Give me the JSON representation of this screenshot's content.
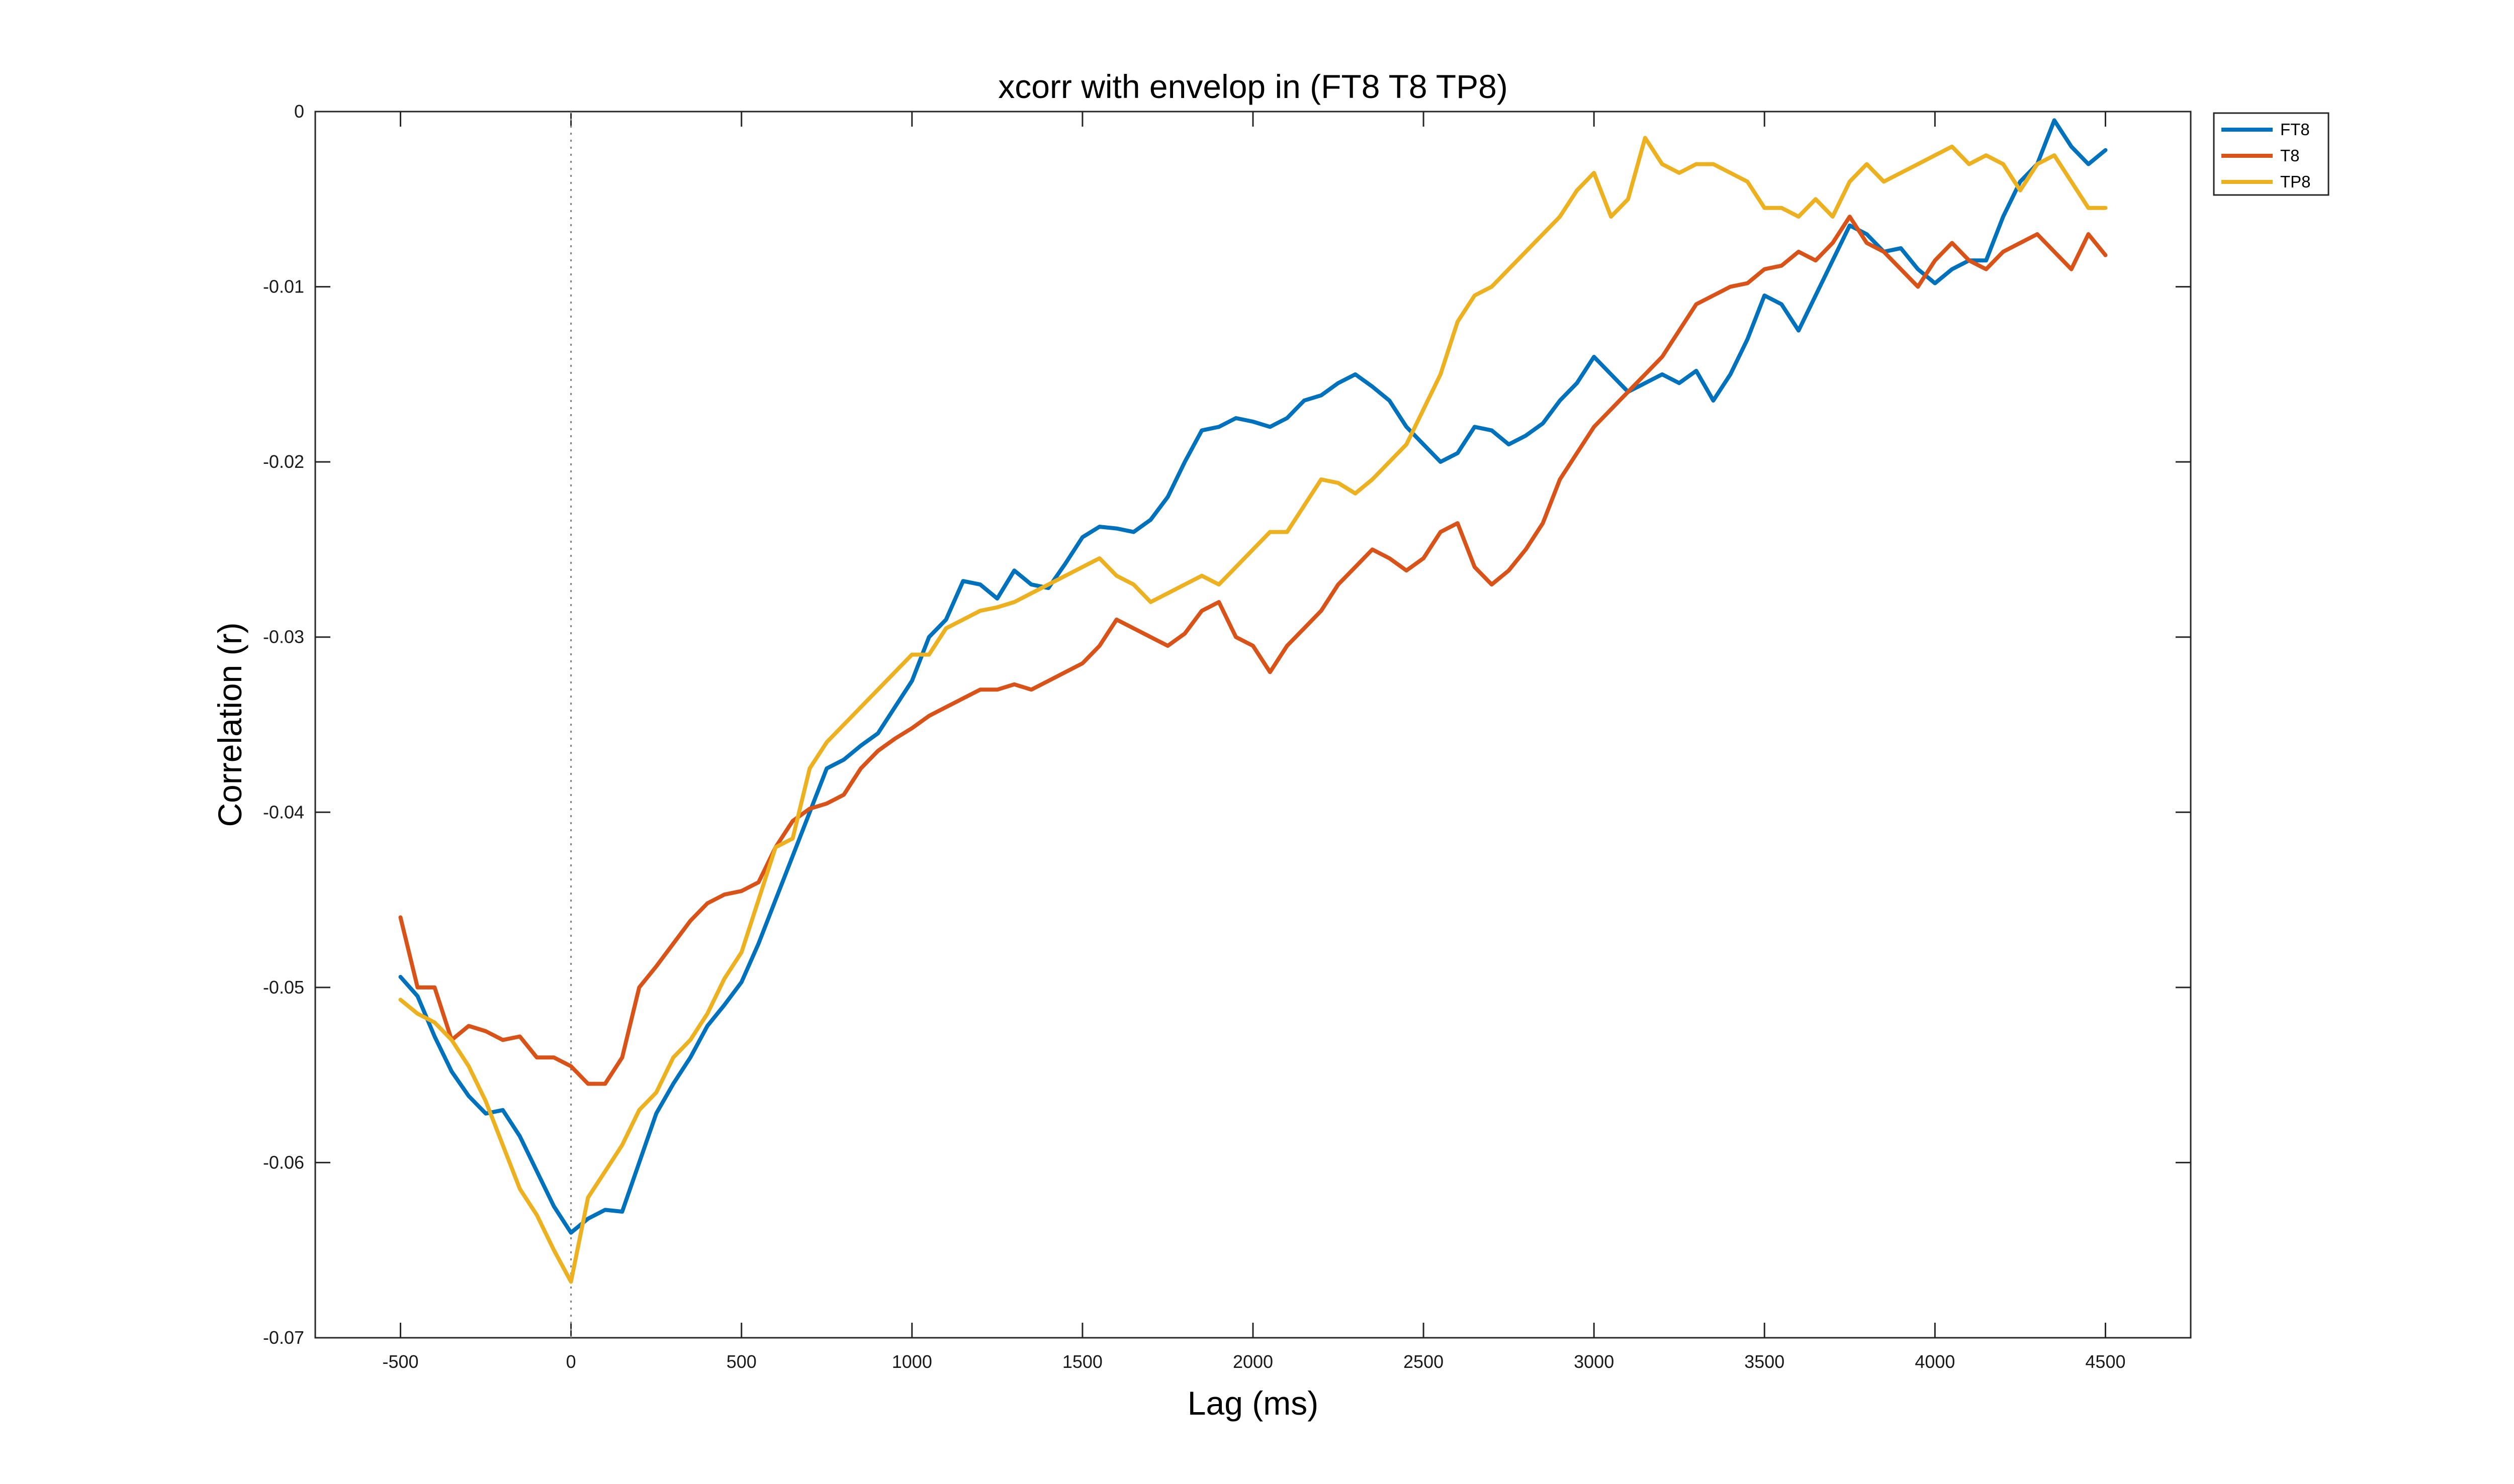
{
  "chart_data": {
    "type": "line",
    "title": "xcorr with envelop in (FT8 T8 TP8)",
    "xlabel": "Lag (ms)",
    "ylabel": "Correlation (r)",
    "xlim": [
      -750,
      4750
    ],
    "ylim": [
      -0.07,
      0
    ],
    "xticks": [
      -500,
      0,
      500,
      1000,
      1500,
      2000,
      2500,
      3000,
      3500,
      4000,
      4500
    ],
    "xtick_labels": [
      "-500",
      "0",
      "500",
      "1000",
      "1500",
      "2000",
      "2500",
      "3000",
      "3500",
      "4000",
      "4500"
    ],
    "yticks": [
      -0.07,
      -0.06,
      -0.05,
      -0.04,
      -0.03,
      -0.02,
      -0.01,
      0
    ],
    "ytick_labels": [
      "-0.07",
      "-0.06",
      "-0.05",
      "-0.04",
      "-0.03",
      "-0.02",
      "-0.01",
      "0"
    ],
    "vline_x": 0,
    "grid": false,
    "legend_position": "top-right",
    "x": [
      -500,
      -450,
      -400,
      -350,
      -300,
      -250,
      -200,
      -150,
      -100,
      -50,
      0,
      50,
      100,
      150,
      200,
      250,
      300,
      350,
      400,
      450,
      500,
      550,
      600,
      650,
      700,
      750,
      800,
      850,
      900,
      950,
      1000,
      1050,
      1100,
      1150,
      1200,
      1250,
      1300,
      1350,
      1400,
      1450,
      1500,
      1550,
      1600,
      1650,
      1700,
      1750,
      1800,
      1850,
      1900,
      1950,
      2000,
      2050,
      2100,
      2150,
      2200,
      2250,
      2300,
      2350,
      2400,
      2450,
      2500,
      2550,
      2600,
      2650,
      2700,
      2750,
      2800,
      2850,
      2900,
      2950,
      3000,
      3050,
      3100,
      3150,
      3200,
      3250,
      3300,
      3350,
      3400,
      3450,
      3500,
      3550,
      3600,
      3650,
      3700,
      3750,
      3800,
      3850,
      3900,
      3950,
      4000,
      4050,
      4100,
      4150,
      4200,
      4250,
      4300,
      4350,
      4400,
      4450,
      4500
    ],
    "series": [
      {
        "name": "FT8",
        "color": "#0072BD",
        "values": [
          -0.0494,
          -0.0505,
          -0.0528,
          -0.0548,
          -0.0562,
          -0.0572,
          -0.057,
          -0.0585,
          -0.0605,
          -0.0625,
          -0.064,
          -0.0632,
          -0.0627,
          -0.0628,
          -0.06,
          -0.0572,
          -0.0555,
          -0.054,
          -0.0522,
          -0.051,
          -0.0497,
          -0.0475,
          -0.045,
          -0.0425,
          -0.04,
          -0.0375,
          -0.037,
          -0.0362,
          -0.0355,
          -0.034,
          -0.0325,
          -0.03,
          -0.029,
          -0.0268,
          -0.027,
          -0.0278,
          -0.0262,
          -0.027,
          -0.0272,
          -0.0258,
          -0.0243,
          -0.0237,
          -0.0238,
          -0.024,
          -0.0233,
          -0.022,
          -0.02,
          -0.0182,
          -0.018,
          -0.0175,
          -0.0177,
          -0.018,
          -0.0175,
          -0.0165,
          -0.0162,
          -0.0155,
          -0.015,
          -0.0157,
          -0.0165,
          -0.018,
          -0.019,
          -0.02,
          -0.0195,
          -0.018,
          -0.0182,
          -0.019,
          -0.0185,
          -0.0178,
          -0.0165,
          -0.0155,
          -0.014,
          -0.015,
          -0.016,
          -0.0155,
          -0.015,
          -0.0155,
          -0.0148,
          -0.0165,
          -0.015,
          -0.013,
          -0.0105,
          -0.011,
          -0.0125,
          -0.0105,
          -0.0085,
          -0.0065,
          -0.007,
          -0.008,
          -0.0078,
          -0.009,
          -0.0098,
          -0.009,
          -0.0085,
          -0.0085,
          -0.006,
          -0.004,
          -0.003,
          -0.0005,
          -0.002,
          -0.003,
          -0.0022
        ]
      },
      {
        "name": "T8",
        "color": "#D95319",
        "values": [
          -0.046,
          -0.05,
          -0.05,
          -0.053,
          -0.0522,
          -0.0525,
          -0.053,
          -0.0528,
          -0.054,
          -0.054,
          -0.0545,
          -0.0555,
          -0.0555,
          -0.054,
          -0.05,
          -0.0488,
          -0.0475,
          -0.0462,
          -0.0452,
          -0.0447,
          -0.0445,
          -0.044,
          -0.042,
          -0.0405,
          -0.0398,
          -0.0395,
          -0.039,
          -0.0375,
          -0.0365,
          -0.0358,
          -0.0352,
          -0.0345,
          -0.034,
          -0.0335,
          -0.033,
          -0.033,
          -0.0327,
          -0.033,
          -0.0325,
          -0.032,
          -0.0315,
          -0.0305,
          -0.029,
          -0.0295,
          -0.03,
          -0.0305,
          -0.0298,
          -0.0285,
          -0.028,
          -0.03,
          -0.0305,
          -0.032,
          -0.0305,
          -0.0295,
          -0.0285,
          -0.027,
          -0.026,
          -0.025,
          -0.0255,
          -0.0262,
          -0.0255,
          -0.024,
          -0.0235,
          -0.026,
          -0.027,
          -0.0262,
          -0.025,
          -0.0235,
          -0.021,
          -0.0195,
          -0.018,
          -0.017,
          -0.016,
          -0.015,
          -0.014,
          -0.0125,
          -0.011,
          -0.0105,
          -0.01,
          -0.0098,
          -0.009,
          -0.0088,
          -0.008,
          -0.0085,
          -0.0075,
          -0.006,
          -0.0075,
          -0.008,
          -0.009,
          -0.01,
          -0.0085,
          -0.0075,
          -0.0085,
          -0.009,
          -0.008,
          -0.0075,
          -0.007,
          -0.008,
          -0.009,
          -0.007,
          -0.0082
        ]
      },
      {
        "name": "TP8",
        "color": "#EDB120",
        "values": [
          -0.0507,
          -0.0515,
          -0.052,
          -0.053,
          -0.0545,
          -0.0565,
          -0.059,
          -0.0615,
          -0.063,
          -0.065,
          -0.0668,
          -0.062,
          -0.0605,
          -0.059,
          -0.057,
          -0.056,
          -0.054,
          -0.053,
          -0.0515,
          -0.0495,
          -0.048,
          -0.045,
          -0.042,
          -0.0415,
          -0.0375,
          -0.036,
          -0.035,
          -0.034,
          -0.033,
          -0.032,
          -0.031,
          -0.031,
          -0.0295,
          -0.029,
          -0.0285,
          -0.0283,
          -0.028,
          -0.0275,
          -0.027,
          -0.0265,
          -0.026,
          -0.0255,
          -0.0265,
          -0.027,
          -0.028,
          -0.0275,
          -0.027,
          -0.0265,
          -0.027,
          -0.026,
          -0.025,
          -0.024,
          -0.024,
          -0.0225,
          -0.021,
          -0.0212,
          -0.0218,
          -0.021,
          -0.02,
          -0.019,
          -0.017,
          -0.015,
          -0.012,
          -0.0105,
          -0.01,
          -0.009,
          -0.008,
          -0.007,
          -0.006,
          -0.0045,
          -0.0035,
          -0.006,
          -0.005,
          -0.0015,
          -0.003,
          -0.0035,
          -0.003,
          -0.003,
          -0.0035,
          -0.004,
          -0.0055,
          -0.0055,
          -0.006,
          -0.005,
          -0.006,
          -0.004,
          -0.003,
          -0.004,
          -0.0035,
          -0.003,
          -0.0025,
          -0.002,
          -0.003,
          -0.0025,
          -0.003,
          -0.0045,
          -0.003,
          -0.0025,
          -0.004,
          -0.0055,
          -0.0055
        ]
      }
    ]
  }
}
